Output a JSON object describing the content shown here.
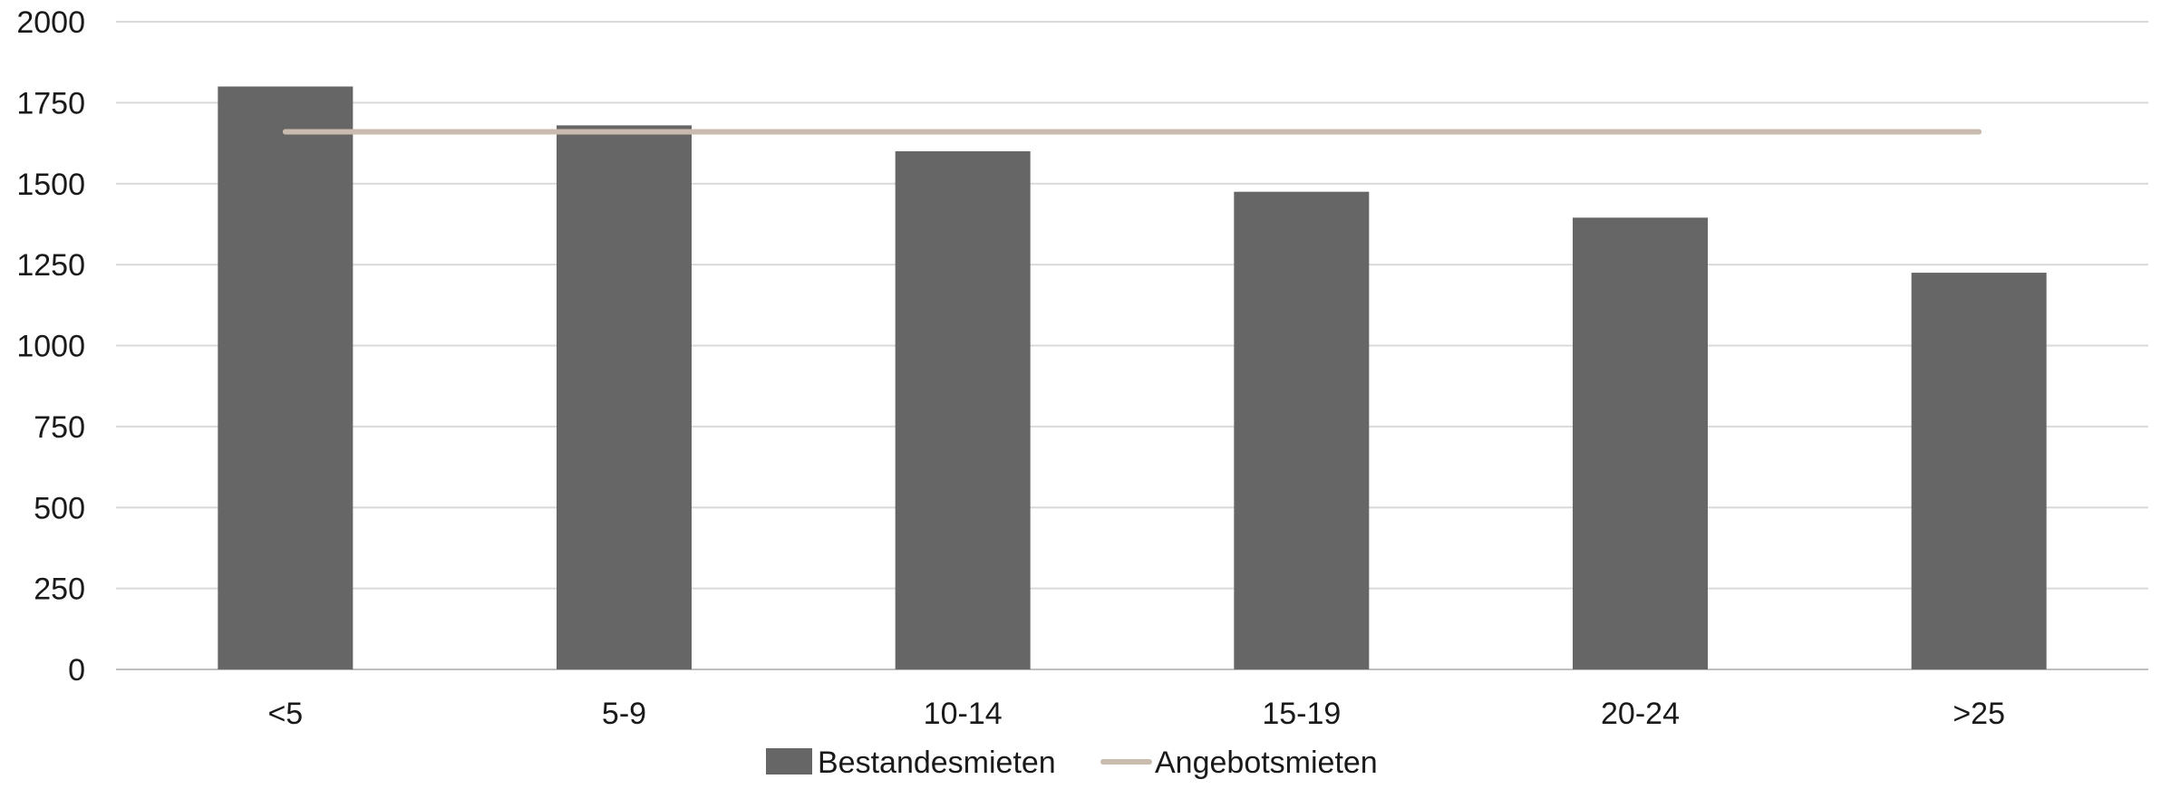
{
  "chart_data": {
    "type": "bar",
    "categories": [
      "<5",
      "5-9",
      "10-14",
      "15-19",
      "20-24",
      ">25"
    ],
    "series": [
      {
        "name": "Bestandesmieten",
        "kind": "bar",
        "color": "#666666",
        "values": [
          1800,
          1680,
          1600,
          1475,
          1395,
          1225
        ]
      },
      {
        "name": "Angebotsmieten",
        "kind": "line",
        "color": "#c9bcae",
        "values": [
          1660,
          1660,
          1660,
          1660,
          1660,
          1660
        ]
      }
    ],
    "yticks": [
      0,
      250,
      500,
      750,
      1000,
      1250,
      1500,
      1750,
      2000
    ],
    "ylim": [
      0,
      2000
    ],
    "title": "",
    "xlabel": "",
    "ylabel": "",
    "grid": true,
    "legend_position": "bottom-center"
  }
}
